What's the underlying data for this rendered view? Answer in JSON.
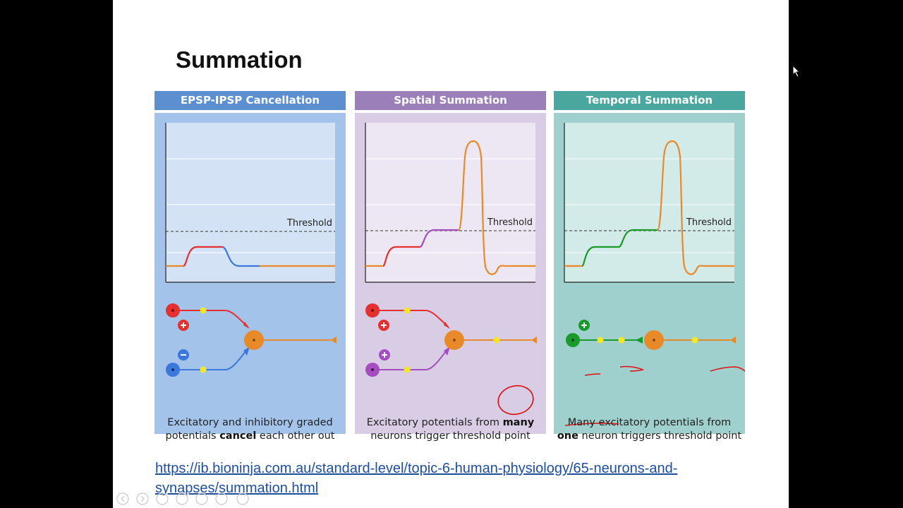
{
  "slide": {
    "title": "Summation",
    "link_text": "https://ib.bioninja.com.au/standard-level/topic-6-human-physiology/65-neurons-and-synapses/summation.html"
  },
  "panels": [
    {
      "header": "EPSP-IPSP Cancellation",
      "threshold_label": "Threshold",
      "caption_line1": "Excitatory and inhibitory graded",
      "caption_pre": "potentials ",
      "caption_bold": "cancel",
      "caption_post": " each other out",
      "colors": {
        "header": "#5b8fd0",
        "body": "#a4c3ea",
        "graph": "#d3e3f5"
      }
    },
    {
      "header": "Spatial Summation",
      "threshold_label": "Threshold",
      "caption_pre": "Excitatory potentials from ",
      "caption_bold": "many",
      "caption_line2": "neurons trigger threshold point",
      "colors": {
        "header": "#9a7fb8",
        "body": "#d9cde6",
        "graph": "#ece7f3"
      }
    },
    {
      "header": "Temporal Summation",
      "threshold_label": "Threshold",
      "caption_line1": "Many excitatory potentials from",
      "caption_bold": "one",
      "caption_mid": " neuron",
      "caption_post": " triggers threshold point",
      "colors": {
        "header": "#4aa7a0",
        "body": "#9fd0cd",
        "graph": "#d2eae8"
      }
    }
  ],
  "colors": {
    "excitatory": "#e53030",
    "inhibitory": "#3a78dc",
    "spatial_second": "#a64dbf",
    "temporal": "#1a9a2a",
    "postsynaptic": "#e88a2a",
    "action_potential": "#e88a2a",
    "impulse_dot": "#f5e62a",
    "annotation": "#e01010"
  }
}
